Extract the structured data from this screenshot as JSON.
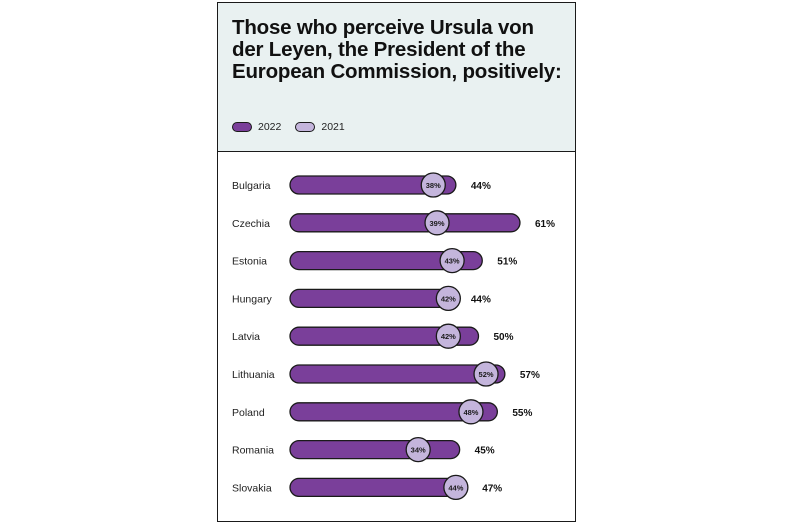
{
  "chart_data": {
    "type": "bar",
    "title": "Those who perceive Ursula von der Leyen, the President of the European Commission, positively:",
    "categories": [
      "Bulgaria",
      "Czechia",
      "Estonia",
      "Hungary",
      "Latvia",
      "Lithuania",
      "Poland",
      "Romania",
      "Slovakia"
    ],
    "series": [
      {
        "name": "2022",
        "values": [
          44,
          61,
          51,
          44,
          50,
          57,
          55,
          45,
          47
        ],
        "labels": [
          "44%",
          "61%",
          "51%",
          "44%",
          "50%",
          "57%",
          "55%",
          "45%",
          "47%"
        ]
      },
      {
        "name": "2021",
        "values": [
          38,
          39,
          43,
          42,
          42,
          52,
          48,
          34,
          44
        ],
        "labels": [
          "38%",
          "39%",
          "43%",
          "42%",
          "42%",
          "52%",
          "48%",
          "34%",
          "44%"
        ]
      }
    ],
    "legend": "top-left",
    "colors": {
      "bar_2022": "#7a3f9a",
      "marker_2021": "#c4b5dc",
      "outline": "#1a1a1a",
      "header_bg": "#e9f1f1"
    },
    "xlim": [
      0,
      61
    ],
    "grid": false
  }
}
